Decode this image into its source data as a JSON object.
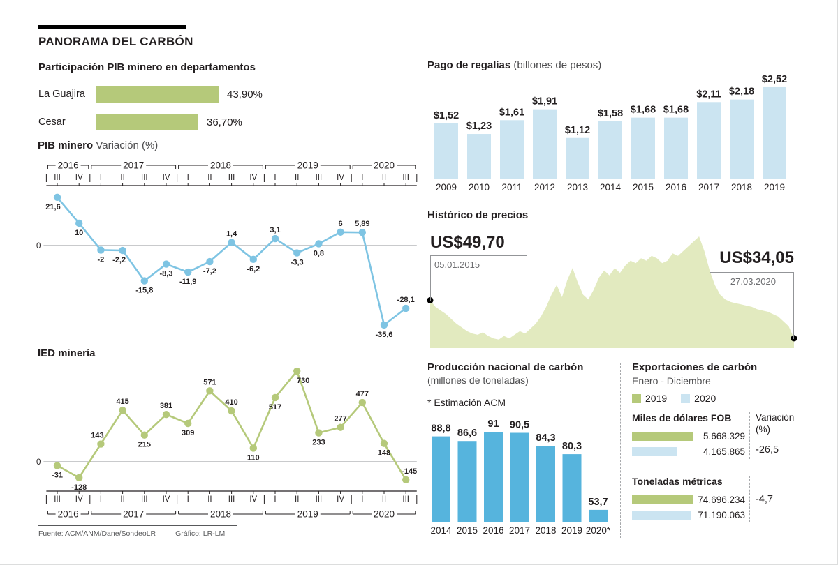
{
  "title": "PANORAMA DEL CARBÓN",
  "source": {
    "fuente": "Fuente: ACM/ANM/Dane/SondeoLR",
    "grafico": "Gráfico: LR-LM"
  },
  "colors": {
    "green": "#b5c97a",
    "blue": "#7ec4e3",
    "light_blue": "#cbe4f1",
    "bar_blue": "#56b4dd",
    "area_green": "#e2eabf",
    "dark": "#231f20",
    "gray": "#6d6e71"
  },
  "chart_data": [
    {
      "id": "pib_departamentos",
      "type": "bar",
      "title": "Participación PIB minero en departamentos",
      "categories": [
        "La Guajira",
        "Cesar"
      ],
      "values": [
        43.9,
        36.7
      ],
      "labels": [
        "43,90%",
        "36,70%"
      ]
    },
    {
      "id": "pib_minero",
      "type": "line",
      "title": "PIB minero",
      "subtitle": "Variación (%)",
      "years": [
        "2016",
        "2017",
        "2018",
        "2019",
        "2020"
      ],
      "x": [
        "III",
        "IV",
        "I",
        "II",
        "III",
        "IV",
        "I",
        "II",
        "III",
        "IV",
        "I",
        "II",
        "III",
        "IV",
        "I",
        "II",
        "III"
      ],
      "values": [
        21.6,
        10,
        -2,
        -2.2,
        -15.8,
        -8.3,
        -11.9,
        -7.2,
        1.4,
        -6.2,
        3.1,
        -3.3,
        0.8,
        6,
        5.89,
        -35.6,
        -28.1
      ],
      "labels": [
        "21,6",
        "10",
        "-2",
        "-2,2",
        "-15,8",
        "-8,3",
        "-11,9",
        "-7,2",
        "1,4",
        "-6,2",
        "3,1",
        "-3,3",
        "0,8",
        "6",
        "5,89",
        "-35,6",
        "-28,1"
      ],
      "zero_label": "0"
    },
    {
      "id": "ied_mineria",
      "type": "line",
      "title": "IED minería",
      "years": [
        "2016",
        "2017",
        "2018",
        "2019",
        "2020"
      ],
      "x": [
        "III",
        "IV",
        "I",
        "II",
        "III",
        "IV",
        "I",
        "II",
        "III",
        "IV",
        "I",
        "II",
        "III",
        "IV",
        "I",
        "II",
        "III"
      ],
      "values": [
        -31,
        -128,
        143,
        415,
        215,
        381,
        309,
        571,
        410,
        110,
        517,
        730,
        233,
        277,
        477,
        148,
        -145
      ],
      "labels": [
        "-31",
        "-128",
        "143",
        "415",
        "215",
        "381",
        "309",
        "571",
        "410",
        "110",
        "517",
        "730",
        "233",
        "277",
        "477",
        "148",
        "-145"
      ],
      "zero_label": "0"
    },
    {
      "id": "regalias",
      "type": "bar",
      "title": "Pago de regalías",
      "subtitle": "(billones de pesos)",
      "categories": [
        "2009",
        "2010",
        "2011",
        "2012",
        "2013",
        "2014",
        "2015",
        "2016",
        "2017",
        "2018",
        "2019"
      ],
      "values": [
        1.52,
        1.23,
        1.61,
        1.91,
        1.12,
        1.58,
        1.68,
        1.68,
        2.11,
        2.18,
        2.52
      ],
      "labels": [
        "$1,52",
        "$1,23",
        "$1,61",
        "$1,91",
        "$1,12",
        "$1,58",
        "$1,68",
        "$1,68",
        "$2,11",
        "$2,18",
        "$2,52"
      ]
    },
    {
      "id": "historico_precios",
      "type": "area",
      "title": "Histórico de precios",
      "start": {
        "label": "US$49,70",
        "date": "05.01.2015",
        "value": 49.7
      },
      "end": {
        "label": "US$34,05",
        "date": "27.03.2020",
        "value": 34.05
      },
      "ylim": [
        30,
        76
      ],
      "values": [
        49.7,
        47,
        45.5,
        44,
        42,
        40,
        38.5,
        37,
        36,
        35.5,
        36.5,
        35,
        34,
        33.5,
        35,
        34,
        35.5,
        37,
        36,
        38,
        40,
        43,
        47,
        52,
        56,
        51,
        58,
        63,
        57,
        52,
        50,
        54,
        59,
        62,
        60,
        63,
        61,
        64,
        66,
        65,
        67,
        66,
        68,
        67,
        65,
        66,
        69,
        68,
        70,
        72,
        74,
        76,
        70,
        62,
        56,
        52,
        50,
        49,
        48.5,
        48,
        47.5,
        47,
        46,
        45.5,
        45,
        44,
        43,
        41,
        39,
        34.05
      ]
    },
    {
      "id": "produccion",
      "type": "bar",
      "title": "Producción nacional de carbón",
      "subtitle": "(millones de toneladas)",
      "note": "* Estimación ACM",
      "categories": [
        "2014",
        "2015",
        "2016",
        "2017",
        "2018",
        "2019",
        "2020*"
      ],
      "values": [
        88.8,
        86.6,
        91,
        90.5,
        84.3,
        80.3,
        53.7
      ],
      "labels": [
        "88,8",
        "86,6",
        "91",
        "90,5",
        "84,3",
        "80,3",
        "53,7"
      ]
    },
    {
      "id": "exportaciones",
      "type": "table",
      "title": "Exportaciones de carbón",
      "subtitle": "Enero - Diciembre",
      "variation_header": "Variación (%)",
      "legend": [
        {
          "label": "2019",
          "color": "#b5c97a"
        },
        {
          "label": "2020",
          "color": "#cbe4f1"
        }
      ],
      "sections": [
        {
          "header": "Miles de dólares FOB",
          "rows": [
            {
              "year": "2019",
              "value": 5668329,
              "label": "5.668.329"
            },
            {
              "year": "2020",
              "value": 4165865,
              "label": "4.165.865"
            }
          ],
          "variation": "-26,5"
        },
        {
          "header": "Toneladas métricas",
          "rows": [
            {
              "year": "2019",
              "value": 74696234,
              "label": "74.696.234"
            },
            {
              "year": "2020",
              "value": 71190063,
              "label": "71.190.063"
            }
          ],
          "variation": "-4,7"
        }
      ]
    }
  ]
}
